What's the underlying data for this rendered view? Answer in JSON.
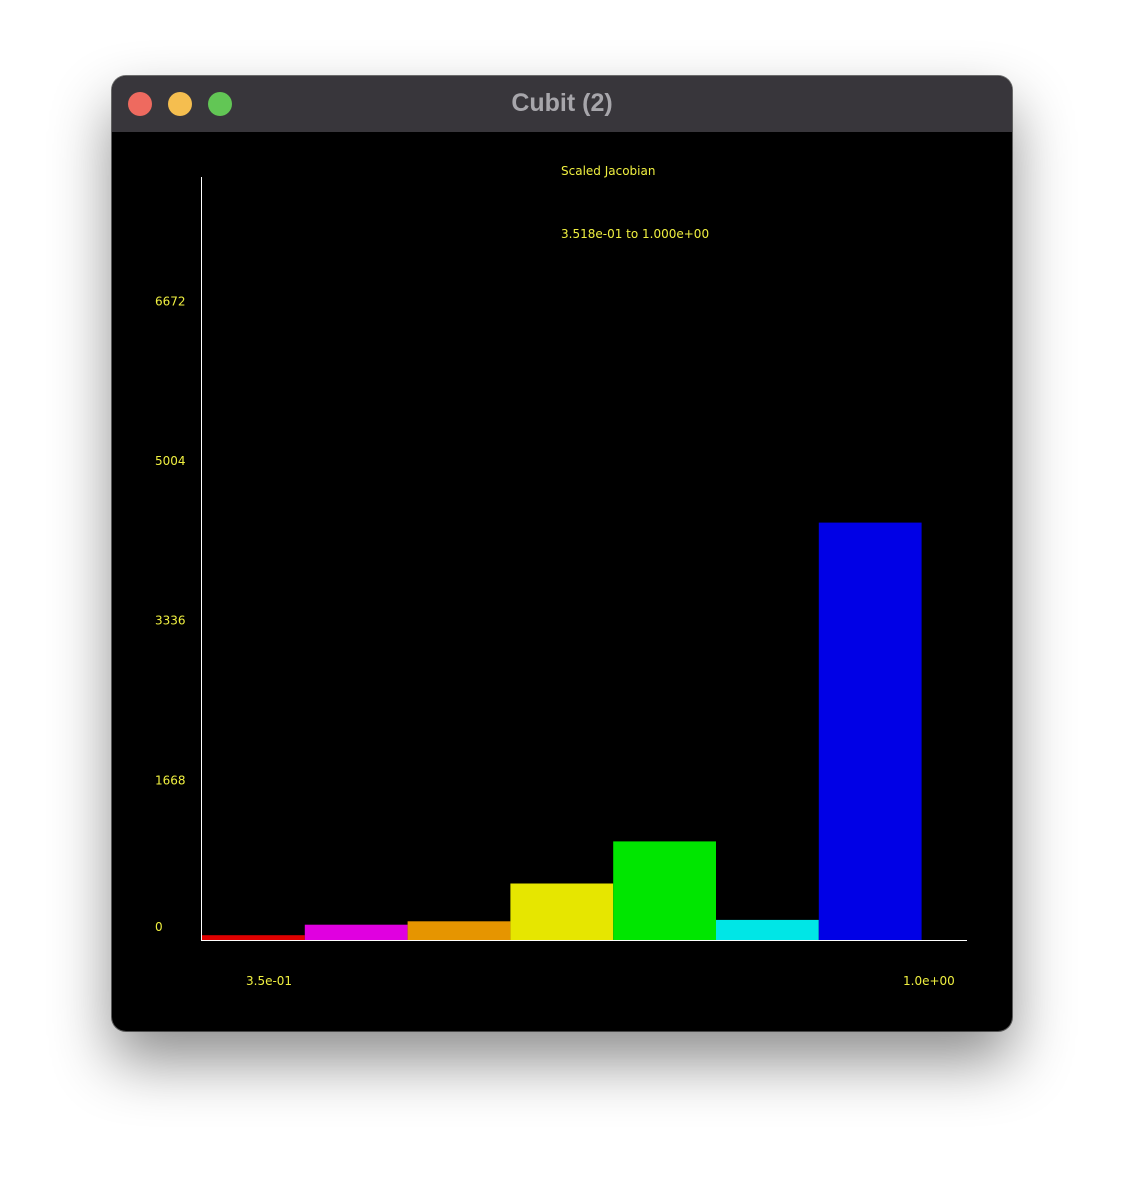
{
  "window": {
    "title": "Cubit (2)"
  },
  "colors": {
    "text": "#f0f040",
    "axis": "#ffffff",
    "background": "#000000"
  },
  "chart_data": {
    "type": "bar",
    "title": "Scaled Jacobian",
    "subtitle": "3.518e-01 to 1.000e+00",
    "x_range_labels": [
      "3.5e-01",
      "1.0e+00"
    ],
    "xlim": [
      0.3518,
      1.0
    ],
    "ylim": [
      0,
      7970
    ],
    "y_ticks": [
      0,
      1668,
      3336,
      5004,
      6672
    ],
    "bins": 7,
    "values": [
      50,
      160,
      195,
      590,
      1030,
      210,
      4360
    ],
    "colors": [
      "#e00000",
      "#e000e0",
      "#e69500",
      "#e6e600",
      "#00e600",
      "#00e6e6",
      "#0000e6"
    ],
    "grid": false,
    "legend": "none"
  }
}
